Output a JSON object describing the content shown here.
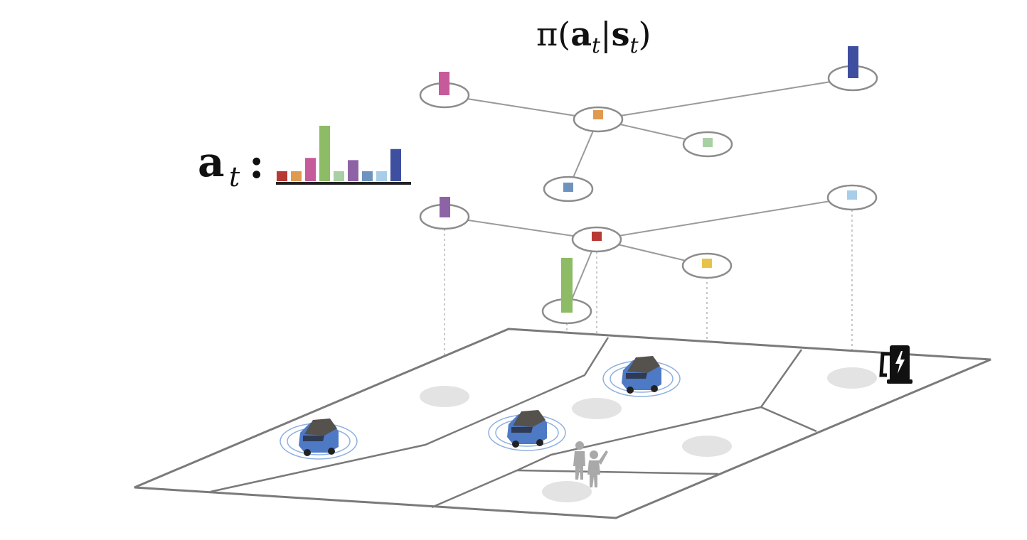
{
  "title": {
    "pi": "π(",
    "a": "a",
    "t1": "t",
    "bar": "|",
    "s": "s",
    "t2": "t",
    "close": ")"
  },
  "action_label": {
    "a": "a",
    "t": "t",
    "colon": ":"
  },
  "action_histogram": {
    "values": [
      0.18,
      0.18,
      0.42,
      1.0,
      0.18,
      0.38,
      0.18,
      0.18,
      0.58
    ],
    "colors": [
      "#b83a34",
      "#e09a50",
      "#c55b9b",
      "#8dbb66",
      "#a9d0a4",
      "#8e63a5",
      "#6f93bf",
      "#a8cde8",
      "#3e4fa0"
    ]
  },
  "upper_graph": {
    "hub_color": "#e09a50",
    "nodes": [
      {
        "name": "magenta",
        "color": "#c55b9b",
        "mark": "bar",
        "level": 0.45
      },
      {
        "name": "navy",
        "color": "#3e4fa0",
        "mark": "bar",
        "level": 0.6
      },
      {
        "name": "light-green",
        "color": "#a9d0a4",
        "mark": "square"
      },
      {
        "name": "steel-blue",
        "color": "#6f93bf",
        "mark": "square"
      }
    ]
  },
  "lower_graph": {
    "hub_color": "#b83a34",
    "nodes": [
      {
        "name": "purple",
        "color": "#8e63a5",
        "mark": "bar",
        "level": 0.38
      },
      {
        "name": "light-blue",
        "color": "#a8cde8",
        "mark": "square"
      },
      {
        "name": "yellow",
        "color": "#e8c34a",
        "mark": "square"
      },
      {
        "name": "green",
        "color": "#8dbb66",
        "mark": "bar",
        "level": 1.0
      }
    ]
  },
  "map": {
    "line_color": "#7a7a7a",
    "zone_marker_color": "#e3e3e3",
    "vehicles": [
      "vehicle-1",
      "vehicle-2",
      "vehicle-3"
    ],
    "vehicle_body_color": "#4e79c4",
    "vehicle_roof_color": "#55514c",
    "icons": [
      "charging-station-icon",
      "pedestrians-icon"
    ]
  }
}
